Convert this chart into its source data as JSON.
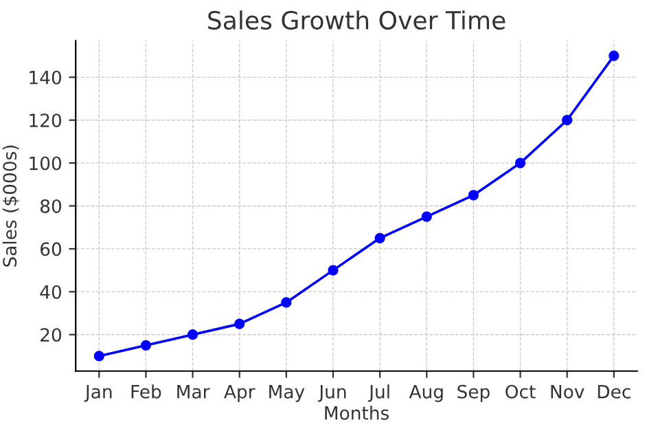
{
  "chart_data": {
    "type": "line",
    "title": "Sales Growth Over Time",
    "xlabel": "Months",
    "ylabel": "Sales ($000s)",
    "categories": [
      "Jan",
      "Feb",
      "Mar",
      "Apr",
      "May",
      "Jun",
      "Jul",
      "Aug",
      "Sep",
      "Oct",
      "Nov",
      "Dec"
    ],
    "series": [
      {
        "color": "#0000ff",
        "values": [
          10,
          15,
          20,
          25,
          35,
          50,
          65,
          75,
          85,
          100,
          120,
          150
        ]
      }
    ],
    "ylim": [
      3,
      157
    ],
    "yticks": [
      20,
      40,
      60,
      80,
      100,
      120,
      140
    ],
    "grid": true,
    "marker": "circle",
    "line_style": "solid"
  }
}
